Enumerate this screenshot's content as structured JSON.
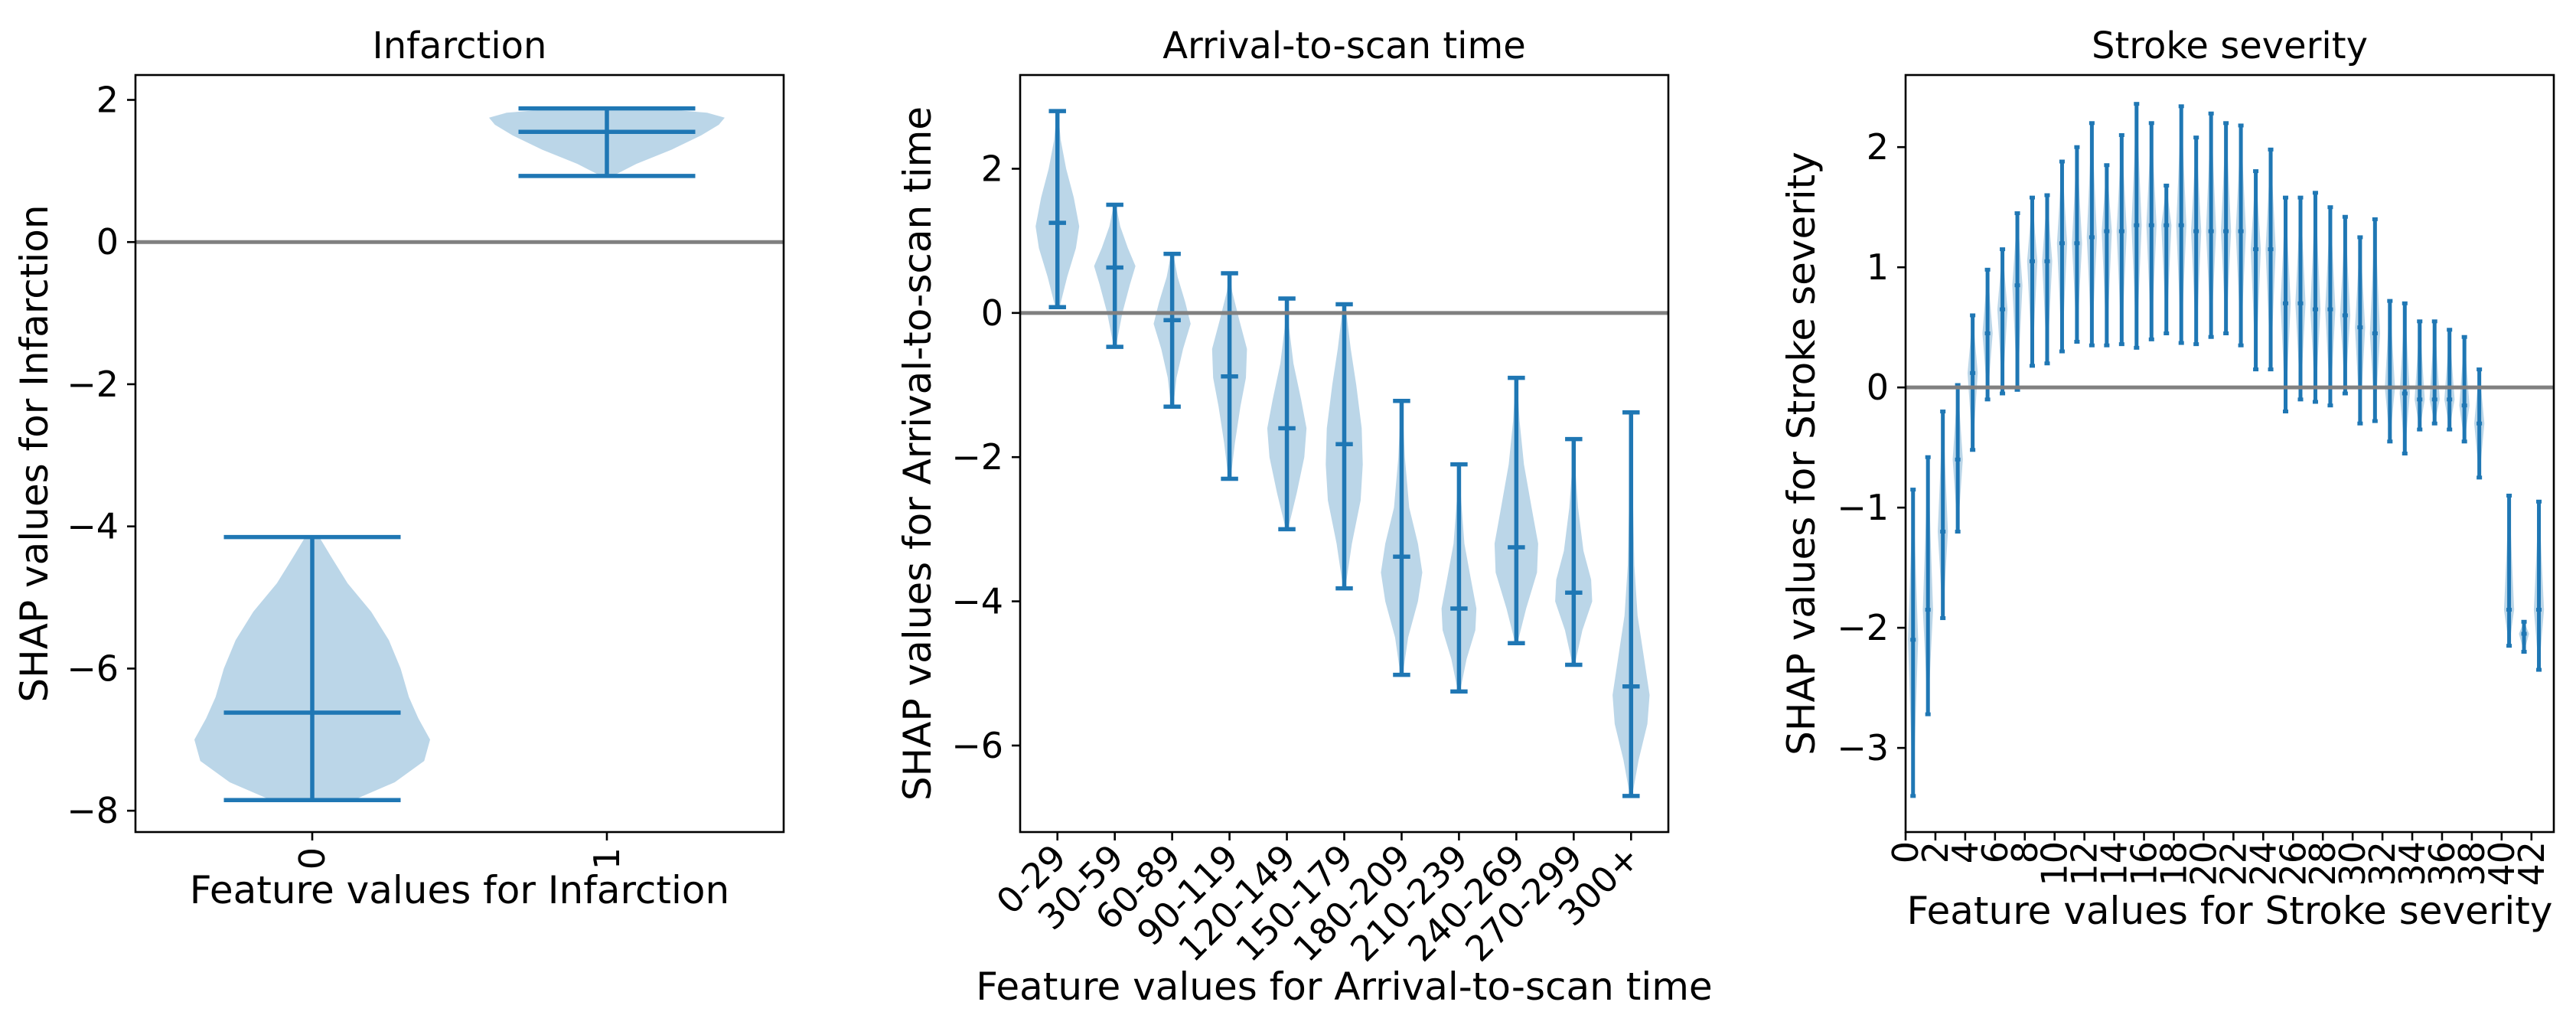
{
  "chart_data": [
    {
      "type": "violin",
      "title": "Infarction",
      "xlabel": "Feature values for Infarction",
      "ylabel": "SHAP values for Infarction",
      "ylim": [
        -8.3,
        2.35
      ],
      "yticks": [
        -8,
        -6,
        -4,
        -2,
        0,
        2
      ],
      "categories": [
        "0",
        "1"
      ],
      "xtick_rotation": 90,
      "reference_line": 0,
      "violins": [
        {
          "min": -7.85,
          "max": -4.15,
          "median": -6.62,
          "density": [
            [
              -7.85,
              0.35
            ],
            [
              -7.6,
              0.7
            ],
            [
              -7.3,
              0.95
            ],
            [
              -7.0,
              1.0
            ],
            [
              -6.7,
              0.9
            ],
            [
              -6.4,
              0.82
            ],
            [
              -6.0,
              0.75
            ],
            [
              -5.6,
              0.65
            ],
            [
              -5.2,
              0.5
            ],
            [
              -4.8,
              0.3
            ],
            [
              -4.4,
              0.15
            ],
            [
              -4.15,
              0.06
            ]
          ]
        },
        {
          "min": 0.93,
          "max": 1.88,
          "median": 1.55,
          "density": [
            [
              0.93,
              0.05
            ],
            [
              1.1,
              0.25
            ],
            [
              1.3,
              0.55
            ],
            [
              1.5,
              0.8
            ],
            [
              1.65,
              0.95
            ],
            [
              1.75,
              1.0
            ],
            [
              1.82,
              0.85
            ],
            [
              1.88,
              0.4
            ]
          ]
        }
      ]
    },
    {
      "type": "violin",
      "title": "Arrival-to-scan time",
      "xlabel": "Feature values for Arrival-to-scan time",
      "ylabel": "SHAP values for Arrival-to-scan time",
      "ylim": [
        -7.2,
        3.3
      ],
      "yticks": [
        -6,
        -4,
        -2,
        0,
        2
      ],
      "categories": [
        "0-29",
        "30-59",
        "60-89",
        "90-119",
        "120-149",
        "150-179",
        "180-209",
        "210-239",
        "240-269",
        "270-299",
        "300+"
      ],
      "xtick_rotation": 45,
      "reference_line": 0,
      "violins": [
        {
          "min": 0.08,
          "max": 2.8,
          "median": 1.25,
          "density": [
            [
              0.08,
              0.1
            ],
            [
              0.5,
              0.45
            ],
            [
              0.9,
              0.85
            ],
            [
              1.2,
              1.0
            ],
            [
              1.6,
              0.75
            ],
            [
              2.0,
              0.4
            ],
            [
              2.4,
              0.15
            ],
            [
              2.8,
              0.03
            ]
          ]
        },
        {
          "min": -0.47,
          "max": 1.5,
          "median": 0.63,
          "density": [
            [
              -0.47,
              0.05
            ],
            [
              0.0,
              0.35
            ],
            [
              0.4,
              0.7
            ],
            [
              0.65,
              0.95
            ],
            [
              0.9,
              0.6
            ],
            [
              1.2,
              0.25
            ],
            [
              1.5,
              0.05
            ]
          ]
        },
        {
          "min": -1.3,
          "max": 0.82,
          "median": -0.1,
          "density": [
            [
              -1.3,
              0.05
            ],
            [
              -0.9,
              0.2
            ],
            [
              -0.5,
              0.5
            ],
            [
              -0.15,
              0.85
            ],
            [
              0.15,
              0.6
            ],
            [
              0.5,
              0.25
            ],
            [
              0.82,
              0.05
            ]
          ]
        },
        {
          "min": -2.3,
          "max": 0.55,
          "median": -0.88,
          "density": [
            [
              -2.3,
              0.05
            ],
            [
              -1.8,
              0.25
            ],
            [
              -1.3,
              0.5
            ],
            [
              -0.9,
              0.75
            ],
            [
              -0.5,
              0.8
            ],
            [
              -0.1,
              0.45
            ],
            [
              0.3,
              0.12
            ],
            [
              0.55,
              0.03
            ]
          ]
        },
        {
          "min": -3.0,
          "max": 0.2,
          "median": -1.6,
          "density": [
            [
              -3.0,
              0.05
            ],
            [
              -2.5,
              0.45
            ],
            [
              -2.0,
              0.8
            ],
            [
              -1.6,
              0.9
            ],
            [
              -1.2,
              0.65
            ],
            [
              -0.7,
              0.3
            ],
            [
              -0.2,
              0.1
            ],
            [
              0.2,
              0.02
            ]
          ]
        },
        {
          "min": -3.82,
          "max": 0.12,
          "median": -1.82,
          "density": [
            [
              -3.82,
              0.05
            ],
            [
              -3.2,
              0.35
            ],
            [
              -2.6,
              0.75
            ],
            [
              -2.1,
              0.85
            ],
            [
              -1.6,
              0.8
            ],
            [
              -1.0,
              0.55
            ],
            [
              -0.5,
              0.3
            ],
            [
              0.12,
              0.05
            ]
          ]
        },
        {
          "min": -5.02,
          "max": -1.22,
          "median": -3.38,
          "density": [
            [
              -5.02,
              0.05
            ],
            [
              -4.5,
              0.3
            ],
            [
              -4.0,
              0.75
            ],
            [
              -3.6,
              0.95
            ],
            [
              -3.2,
              0.75
            ],
            [
              -2.7,
              0.35
            ],
            [
              -2.0,
              0.15
            ],
            [
              -1.22,
              0.03
            ]
          ]
        },
        {
          "min": -5.25,
          "max": -2.1,
          "median": -4.1,
          "density": [
            [
              -5.25,
              0.05
            ],
            [
              -4.8,
              0.35
            ],
            [
              -4.4,
              0.75
            ],
            [
              -4.1,
              0.8
            ],
            [
              -3.7,
              0.55
            ],
            [
              -3.2,
              0.25
            ],
            [
              -2.6,
              0.1
            ],
            [
              -2.1,
              0.03
            ]
          ]
        },
        {
          "min": -4.58,
          "max": -0.9,
          "median": -3.25,
          "density": [
            [
              -4.58,
              0.05
            ],
            [
              -4.1,
              0.45
            ],
            [
              -3.6,
              0.95
            ],
            [
              -3.2,
              1.0
            ],
            [
              -2.7,
              0.7
            ],
            [
              -2.1,
              0.35
            ],
            [
              -1.5,
              0.15
            ],
            [
              -0.9,
              0.03
            ]
          ]
        },
        {
          "min": -4.88,
          "max": -1.75,
          "median": -3.88,
          "density": [
            [
              -4.88,
              0.05
            ],
            [
              -4.4,
              0.4
            ],
            [
              -4.0,
              0.85
            ],
            [
              -3.7,
              0.8
            ],
            [
              -3.3,
              0.45
            ],
            [
              -2.7,
              0.2
            ],
            [
              -2.2,
              0.08
            ],
            [
              -1.75,
              0.02
            ]
          ]
        },
        {
          "min": -6.7,
          "max": -1.38,
          "median": -5.18,
          "density": [
            [
              -6.7,
              0.05
            ],
            [
              -6.2,
              0.35
            ],
            [
              -5.7,
              0.75
            ],
            [
              -5.3,
              0.85
            ],
            [
              -4.8,
              0.6
            ],
            [
              -4.2,
              0.3
            ],
            [
              -3.5,
              0.15
            ],
            [
              -2.5,
              0.08
            ],
            [
              -1.38,
              0.02
            ]
          ]
        }
      ]
    },
    {
      "type": "violin",
      "title": "Stroke severity",
      "xlabel": "Feature values for Stroke severity",
      "ylabel": "SHAP values for Stroke severity",
      "xlim": [
        0,
        43.5
      ],
      "ylim": [
        -3.7,
        2.6
      ],
      "yticks": [
        -3,
        -2,
        -1,
        0,
        1,
        2
      ],
      "xticks": [
        0,
        2,
        4,
        6,
        8,
        10,
        12,
        14,
        16,
        18,
        20,
        22,
        24,
        26,
        28,
        30,
        32,
        34,
        36,
        38,
        40,
        42
      ],
      "xtick_rotation": 90,
      "reference_line": 0,
      "violins": [
        {
          "x": 0,
          "min": -3.4,
          "max": -0.85,
          "median": -2.1
        },
        {
          "x": 1,
          "min": -2.72,
          "max": -0.58,
          "median": -1.85
        },
        {
          "x": 2,
          "min": -1.92,
          "max": -0.2,
          "median": -1.2
        },
        {
          "x": 3,
          "min": -1.2,
          "max": 0.02,
          "median": -0.6
        },
        {
          "x": 4,
          "min": -0.52,
          "max": 0.6,
          "median": 0.12
        },
        {
          "x": 5,
          "min": -0.1,
          "max": 0.98,
          "median": 0.45
        },
        {
          "x": 6,
          "min": -0.05,
          "max": 1.15,
          "median": 0.65
        },
        {
          "x": 7,
          "min": -0.02,
          "max": 1.45,
          "median": 0.85
        },
        {
          "x": 8,
          "min": 0.18,
          "max": 1.58,
          "median": 1.05
        },
        {
          "x": 9,
          "min": 0.2,
          "max": 1.6,
          "median": 1.05
        },
        {
          "x": 10,
          "min": 0.3,
          "max": 1.88,
          "median": 1.2
        },
        {
          "x": 11,
          "min": 0.38,
          "max": 2.0,
          "median": 1.2
        },
        {
          "x": 12,
          "min": 0.35,
          "max": 2.2,
          "median": 1.25
        },
        {
          "x": 13,
          "min": 0.35,
          "max": 1.85,
          "median": 1.3
        },
        {
          "x": 14,
          "min": 0.36,
          "max": 2.1,
          "median": 1.3
        },
        {
          "x": 15,
          "min": 0.33,
          "max": 2.36,
          "median": 1.35
        },
        {
          "x": 16,
          "min": 0.4,
          "max": 2.2,
          "median": 1.35
        },
        {
          "x": 17,
          "min": 0.45,
          "max": 1.68,
          "median": 1.35
        },
        {
          "x": 18,
          "min": 0.37,
          "max": 2.34,
          "median": 1.35
        },
        {
          "x": 19,
          "min": 0.36,
          "max": 2.08,
          "median": 1.3
        },
        {
          "x": 20,
          "min": 0.42,
          "max": 2.28,
          "median": 1.3
        },
        {
          "x": 21,
          "min": 0.45,
          "max": 2.2,
          "median": 1.3
        },
        {
          "x": 22,
          "min": 0.35,
          "max": 2.18,
          "median": 1.3
        },
        {
          "x": 23,
          "min": 0.15,
          "max": 1.8,
          "median": 1.15
        },
        {
          "x": 24,
          "min": 0.15,
          "max": 1.98,
          "median": 1.15
        },
        {
          "x": 25,
          "min": -0.2,
          "max": 1.58,
          "median": 0.7
        },
        {
          "x": 26,
          "min": -0.1,
          "max": 1.58,
          "median": 0.7
        },
        {
          "x": 27,
          "min": -0.12,
          "max": 1.62,
          "median": 0.65
        },
        {
          "x": 28,
          "min": -0.15,
          "max": 1.5,
          "median": 0.65
        },
        {
          "x": 29,
          "min": -0.05,
          "max": 1.42,
          "median": 0.6
        },
        {
          "x": 30,
          "min": -0.3,
          "max": 1.25,
          "median": 0.5
        },
        {
          "x": 31,
          "min": -0.28,
          "max": 1.4,
          "median": 0.45
        },
        {
          "x": 32,
          "min": -0.45,
          "max": 0.72,
          "median": 0.0
        },
        {
          "x": 33,
          "min": -0.55,
          "max": 0.7,
          "median": -0.05
        },
        {
          "x": 34,
          "min": -0.35,
          "max": 0.55,
          "median": -0.1
        },
        {
          "x": 35,
          "min": -0.3,
          "max": 0.55,
          "median": -0.1
        },
        {
          "x": 36,
          "min": -0.35,
          "max": 0.48,
          "median": -0.1
        },
        {
          "x": 37,
          "min": -0.45,
          "max": 0.42,
          "median": -0.15
        },
        {
          "x": 38,
          "min": -0.75,
          "max": 0.15,
          "median": -0.3
        },
        {
          "x": 40,
          "min": -2.15,
          "max": -0.9,
          "median": -1.85
        },
        {
          "x": 41,
          "min": -2.2,
          "max": -1.95,
          "median": -2.05
        },
        {
          "x": 42,
          "min": -2.35,
          "max": -0.95,
          "median": -1.85
        }
      ]
    }
  ]
}
